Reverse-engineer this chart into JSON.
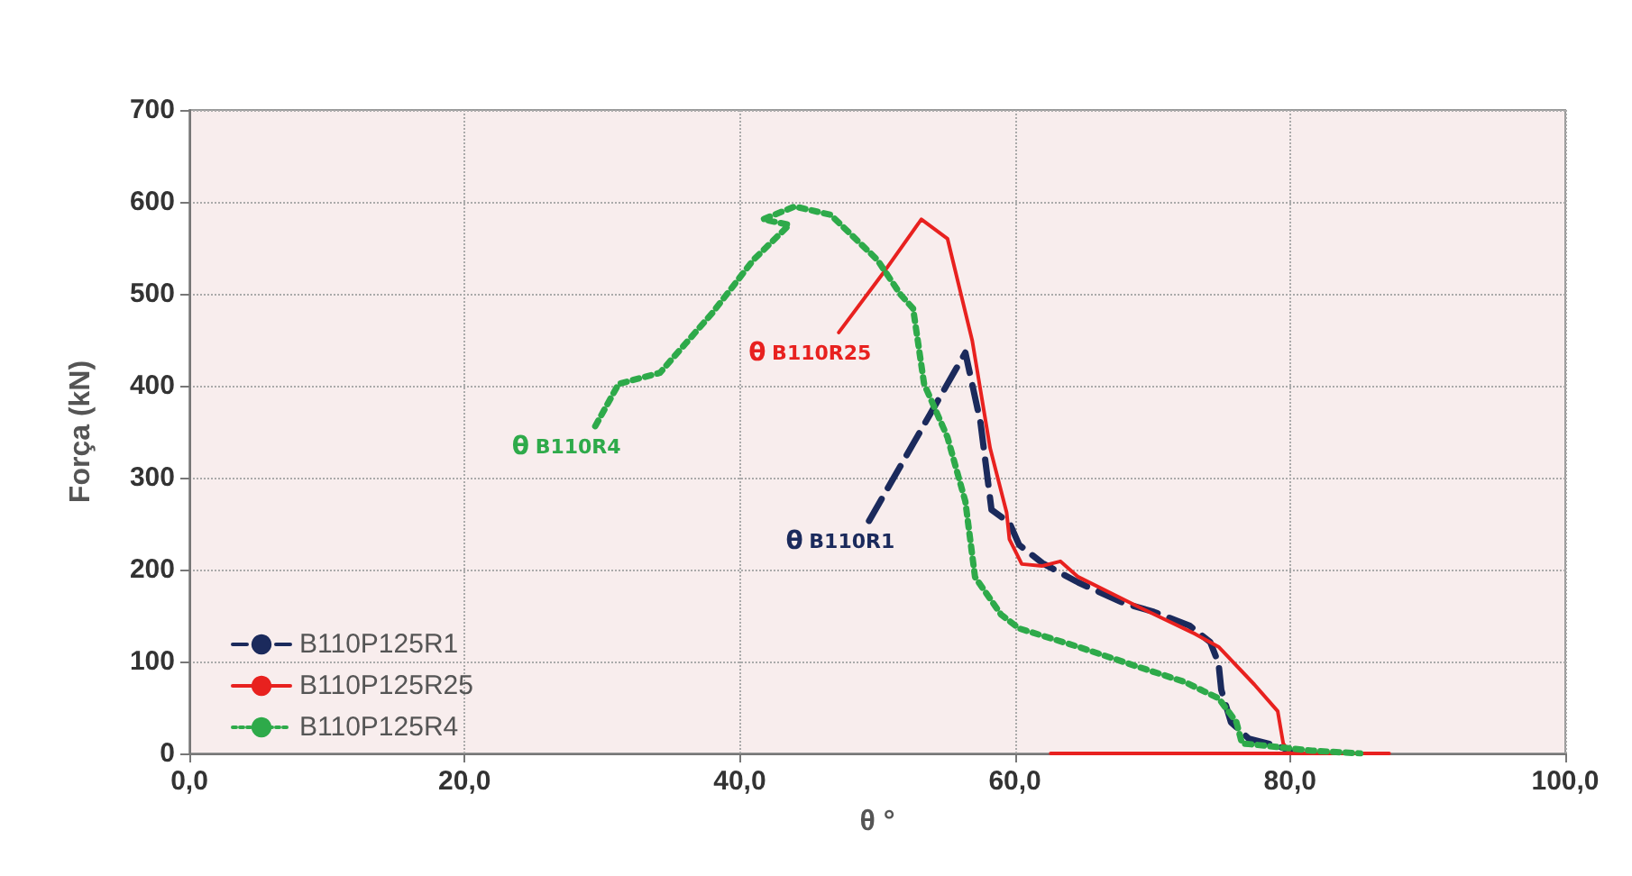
{
  "chart_data": {
    "type": "line",
    "xlabel": "θ °",
    "ylabel": "Força (kN)",
    "xlim": [
      0,
      100
    ],
    "xticks": [
      {
        "value": 0,
        "label": "0,0"
      },
      {
        "value": 20,
        "label": "20,0"
      },
      {
        "value": 40,
        "label": "40,0"
      },
      {
        "value": 60,
        "label": "60,0"
      },
      {
        "value": 80,
        "label": "80,0"
      },
      {
        "value": 100,
        "label": "100,0"
      }
    ],
    "ylim": [
      0,
      700
    ],
    "yticks": [
      0,
      100,
      200,
      300,
      400,
      500,
      600,
      700
    ],
    "grid": true,
    "legend": "bottom left",
    "marker": "none",
    "series": [
      {
        "name": "B110P125R1",
        "color": "#1b2a5c",
        "line_style": "dashed",
        "x": [
          49.4,
          56.4,
          57.5,
          58.3,
          59.6,
          60.3,
          62,
          64.6,
          68,
          70.1,
          72.7,
          74.2,
          74.8,
          75,
          75.7,
          77,
          79.1,
          80
        ],
        "values": [
          253,
          436,
          360,
          265,
          251,
          227,
          207,
          186,
          163,
          154,
          139,
          121,
          98,
          69,
          34,
          16,
          8,
          3
        ]
      },
      {
        "name": "B110P125R25",
        "color": "#e8211f",
        "line_style": "solid",
        "x": [
          47.2,
          50.4,
          53.2,
          55.1,
          56.9,
          58.2,
          59.4,
          59.6,
          60.5,
          62,
          63.3,
          64.6,
          68.9,
          73.1,
          74.8,
          77.4,
          79.1,
          79.5,
          80,
          87.2,
          62.6
        ],
        "values": [
          458,
          522,
          581,
          560,
          449,
          332,
          262,
          233,
          206,
          204,
          209,
          192,
          160,
          130,
          116,
          75,
          46,
          11,
          0,
          0,
          0
        ]
      },
      {
        "name": "B110P125R4",
        "color": "#2eaa4a",
        "line_style": "dotted",
        "x": [
          29.5,
          31.2,
          34.2,
          38,
          41,
          43.6,
          41.7,
          44,
          46.6,
          50,
          51.7,
          52.6,
          53.4,
          55.1,
          56.4,
          57.1,
          59,
          60.3,
          64.6,
          68.8,
          72.3,
          74.8,
          76.1,
          76.5,
          81.6,
          85.1
        ],
        "values": [
          356,
          402,
          414,
          479,
          537,
          575,
          581,
          595,
          586,
          537,
          499,
          484,
          402,
          344,
          274,
          192,
          151,
          136,
          116,
          95,
          78,
          60,
          34,
          11,
          3,
          0
        ]
      }
    ],
    "annotations": [
      {
        "text": "θ B110R1",
        "x": 49.4,
        "y": 253
      },
      {
        "text": "θ B110R25",
        "x": 47.2,
        "y": 458
      },
      {
        "text": "θ B110R4",
        "x": 29.5,
        "y": 356
      }
    ]
  }
}
